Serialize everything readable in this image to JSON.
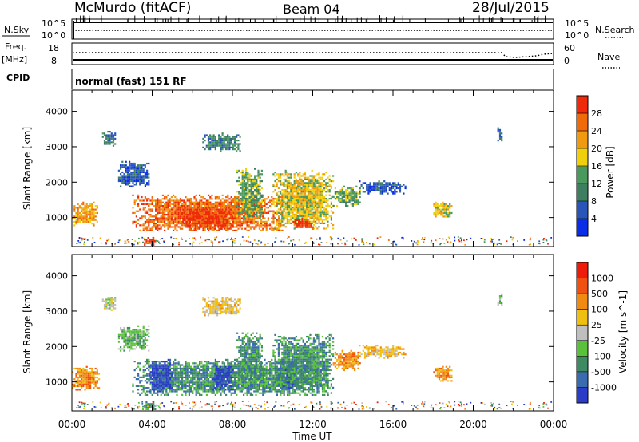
{
  "header": {
    "station": "McMurdo (fitACF)",
    "beam": "Beam 04",
    "date": "28/Jul/2015"
  },
  "strip_panels": {
    "nsky_label": "N.Sky",
    "nsky_ticks": [
      "10^5",
      "10^0"
    ],
    "nsearch_label": "N.Search",
    "nsearch_ticks": [
      "10^5",
      "10^0"
    ],
    "freq_label_1": "Freq.",
    "freq_label_2": "[MHz]",
    "freq_ticks": [
      "18",
      "8"
    ],
    "nave_label": "Nave",
    "nave_ticks": [
      "60",
      "0"
    ],
    "cpid_label": "CPID",
    "cpid_text": "normal (fast) 151 RF"
  },
  "chart_data": [
    {
      "type": "heatmap",
      "title": "",
      "xlabel": "",
      "ylabel": "Slant Range [km]",
      "xlim": [
        0,
        24
      ],
      "ylim": [
        180,
        4600
      ],
      "x_ticks": [
        "00:00",
        "04:00",
        "08:00",
        "12:00",
        "16:00",
        "20:00",
        "00:00"
      ],
      "y_ticks": [
        "1000",
        "2000",
        "3000",
        "4000"
      ],
      "colorbar": {
        "label": "Power [dB]",
        "ticks": [
          "4",
          "8",
          "12",
          "16",
          "20",
          "24",
          "28"
        ],
        "colors": [
          "#0a2ee8",
          "#2a55b8",
          "#3e7f62",
          "#4a9a5e",
          "#f0d00c",
          "#f09a10",
          "#f06a0a",
          "#ee2a0a"
        ]
      },
      "echo_regions": [
        {
          "x": [
            0.0,
            1.3
          ],
          "y": [
            800,
            1450
          ],
          "level": 5
        },
        {
          "x": [
            1.5,
            2.2
          ],
          "y": [
            3050,
            3450
          ],
          "level": 2
        },
        {
          "x": [
            2.3,
            3.8
          ],
          "y": [
            1900,
            2600
          ],
          "level": 1
        },
        {
          "x": [
            3.0,
            10.6
          ],
          "y": [
            620,
            1650
          ],
          "level": 6
        },
        {
          "x": [
            5.5,
            8.0
          ],
          "y": [
            700,
            1300
          ],
          "level": 7
        },
        {
          "x": [
            6.5,
            8.4
          ],
          "y": [
            2900,
            3400
          ],
          "level": 2
        },
        {
          "x": [
            8.2,
            9.5
          ],
          "y": [
            1000,
            2400
          ],
          "level": 3
        },
        {
          "x": [
            10.0,
            13.0
          ],
          "y": [
            700,
            2350
          ],
          "level": 4
        },
        {
          "x": [
            11.0,
            12.0
          ],
          "y": [
            700,
            1000
          ],
          "level": 7
        },
        {
          "x": [
            13.0,
            14.4
          ],
          "y": [
            1350,
            1900
          ],
          "level": 3
        },
        {
          "x": [
            14.3,
            16.6
          ],
          "y": [
            1700,
            2050
          ],
          "level": 1
        },
        {
          "x": [
            18.0,
            18.9
          ],
          "y": [
            1050,
            1450
          ],
          "level": 4
        },
        {
          "x": [
            21.2,
            21.4
          ],
          "y": [
            3200,
            3550
          ],
          "level": 1
        },
        {
          "x": [
            3.5,
            4.2
          ],
          "y": [
            220,
            450
          ],
          "level": 7
        }
      ]
    },
    {
      "type": "heatmap",
      "title": "",
      "xlabel": "Time UT",
      "ylabel": "Slant Range [km]",
      "xlim": [
        0,
        24
      ],
      "ylim": [
        180,
        4600
      ],
      "x_ticks": [
        "00:00",
        "04:00",
        "08:00",
        "12:00",
        "16:00",
        "20:00",
        "00:00"
      ],
      "y_ticks": [
        "1000",
        "2000",
        "3000",
        "4000"
      ],
      "colorbar": {
        "label": "Velocity [m s^-1]",
        "ticks": [
          "1000",
          "500",
          "100",
          "25",
          "-25",
          "-100",
          "-500",
          "-1000"
        ],
        "colors": [
          "#2a3cc8",
          "#3a6ab0",
          "#3e8a62",
          "#5ac23a",
          "#bfbfbf",
          "#f0c010",
          "#f08a10",
          "#f05010",
          "#ee1a0a"
        ]
      },
      "echo_regions": [
        {
          "x": [
            0.0,
            1.4
          ],
          "y": [
            800,
            1450
          ],
          "level": 6
        },
        {
          "x": [
            1.5,
            2.2
          ],
          "y": [
            3050,
            3450
          ],
          "level": 4
        },
        {
          "x": [
            2.3,
            3.8
          ],
          "y": [
            1900,
            2600
          ],
          "level": 3
        },
        {
          "x": [
            3.0,
            12.8
          ],
          "y": [
            620,
            1650
          ],
          "level": 2
        },
        {
          "x": [
            3.8,
            5.0
          ],
          "y": [
            750,
            1650
          ],
          "level": 0
        },
        {
          "x": [
            7.0,
            8.0
          ],
          "y": [
            800,
            1500
          ],
          "level": 0
        },
        {
          "x": [
            10.5,
            11.2
          ],
          "y": [
            800,
            1600
          ],
          "level": 0
        },
        {
          "x": [
            6.5,
            8.4
          ],
          "y": [
            2900,
            3400
          ],
          "level": 5
        },
        {
          "x": [
            8.2,
            9.5
          ],
          "y": [
            1000,
            2400
          ],
          "level": 2
        },
        {
          "x": [
            10.0,
            13.0
          ],
          "y": [
            700,
            2350
          ],
          "level": 2
        },
        {
          "x": [
            13.0,
            14.4
          ],
          "y": [
            1350,
            1900
          ],
          "level": 6
        },
        {
          "x": [
            14.3,
            16.6
          ],
          "y": [
            1700,
            2050
          ],
          "level": 5
        },
        {
          "x": [
            18.0,
            18.9
          ],
          "y": [
            1050,
            1450
          ],
          "level": 6
        },
        {
          "x": [
            21.2,
            21.4
          ],
          "y": [
            3200,
            3550
          ],
          "level": 3
        },
        {
          "x": [
            3.5,
            4.2
          ],
          "y": [
            220,
            450
          ],
          "level": 2
        }
      ]
    }
  ]
}
